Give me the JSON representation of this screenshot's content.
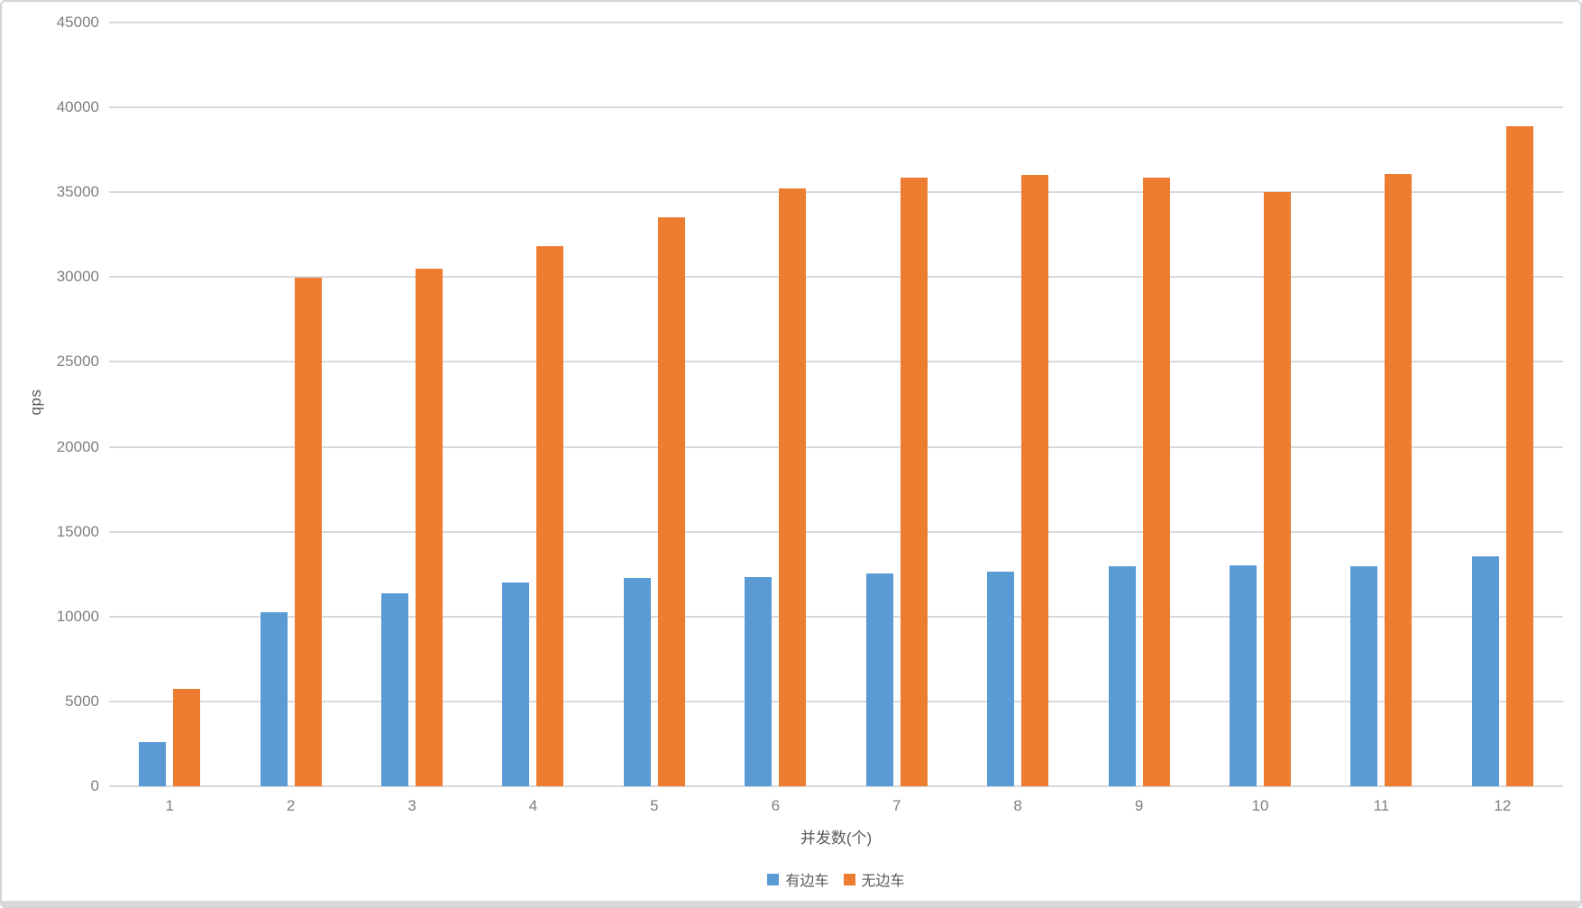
{
  "chart_data": {
    "type": "bar",
    "title": "",
    "categories": [
      "1",
      "2",
      "3",
      "4",
      "5",
      "6",
      "7",
      "8",
      "9",
      "10",
      "11",
      "12"
    ],
    "series": [
      {
        "name": "有边车",
        "key": "with-sidecar",
        "color": "#5B9BD5",
        "values": [
          2600,
          10250,
          11350,
          12000,
          12250,
          12350,
          12550,
          12650,
          12950,
          13000,
          12950,
          13550
        ]
      },
      {
        "name": "无边车",
        "key": "no-sidecar",
        "color": "#ED7D31",
        "values": [
          5750,
          29950,
          30500,
          31800,
          33550,
          35200,
          35850,
          36000,
          35850,
          35000,
          36050,
          38900
        ]
      }
    ],
    "xlabel": "并发数(个)",
    "ylabel": "qps",
    "ylim": [
      0,
      45000
    ],
    "y_ticks": [
      0,
      5000,
      10000,
      15000,
      20000,
      25000,
      30000,
      35000,
      40000,
      45000
    ],
    "y_tick_labels": [
      "0",
      "5000",
      "10000",
      "15000",
      "20000",
      "25000",
      "30000",
      "35000",
      "40000",
      "45000"
    ],
    "grid": true,
    "legend_position": "bottom"
  },
  "colors": {
    "gridline": "#d9d9d9",
    "tick_label": "#7f7f7f",
    "axis_title": "#595959",
    "card_border": "#d4d4d4",
    "bottom_strip": "#d9d9d9",
    "background": "#ffffff"
  }
}
